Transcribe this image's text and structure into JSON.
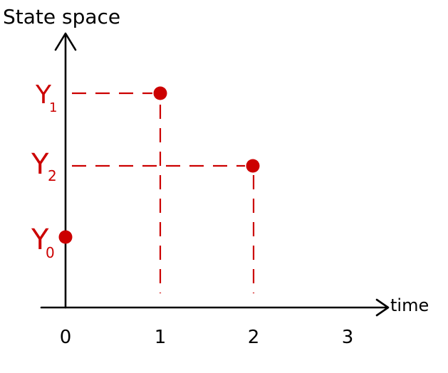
{
  "colors": {
    "axis": "#000000",
    "accent": "#cc0000"
  },
  "y_axis_label": "State space",
  "x_axis_label": "time",
  "x_ticks": [
    "0",
    "1",
    "2",
    "3"
  ],
  "state_labels": {
    "y1": {
      "main": "Y",
      "sub": "1"
    },
    "y2": {
      "main": "Y",
      "sub": "2"
    },
    "y0": {
      "main": "Y",
      "sub": "0"
    }
  },
  "points": [
    {
      "time": 0,
      "state": "Y0"
    },
    {
      "time": 1,
      "state": "Y1"
    },
    {
      "time": 2,
      "state": "Y2"
    }
  ]
}
